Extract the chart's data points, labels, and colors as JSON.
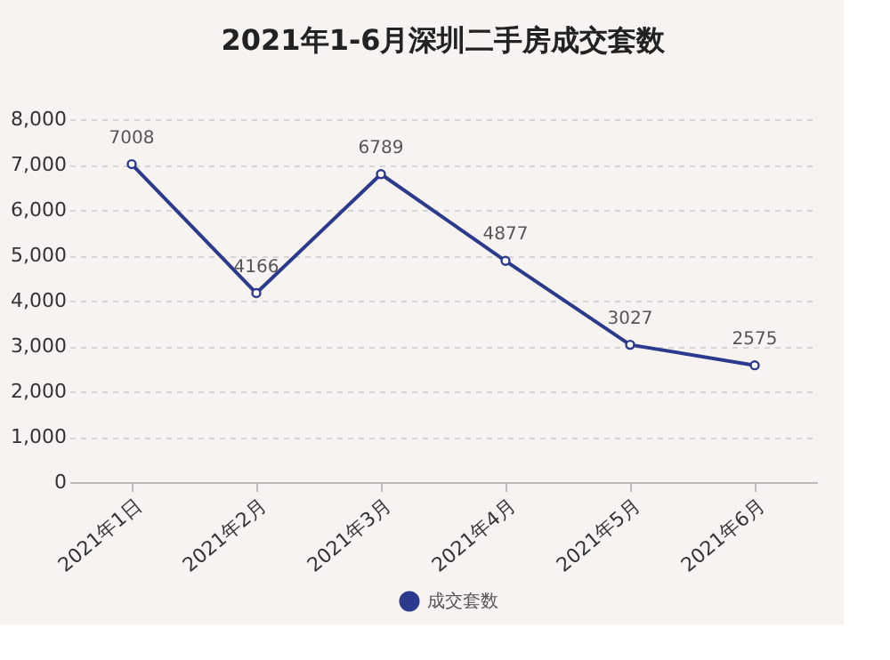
{
  "chart_data": {
    "type": "line",
    "title": "2021年1-6月深圳二手房成交套数",
    "categories": [
      "2021年1日",
      "2021年2月",
      "2021年3月",
      "2021年4月",
      "2021年5月",
      "2021年6月"
    ],
    "series": [
      {
        "name": "成交套数",
        "color": "#2b3a8c",
        "values": [
          7008,
          4166,
          6789,
          4877,
          3027,
          2575
        ]
      }
    ],
    "ylim": [
      0,
      8000
    ],
    "yticks": [
      0,
      {
        "value": 1000,
        "label": "1,000"
      },
      {
        "value": 2000,
        "label": "2,000"
      },
      {
        "value": 3000,
        "label": "3,000"
      },
      {
        "value": 4000,
        "label": "4,000"
      },
      {
        "value": 5000,
        "label": "5,000"
      },
      {
        "value": 6000,
        "label": "6,000"
      },
      {
        "value": 7000,
        "label": "7,000"
      },
      {
        "value": 8000,
        "label": "8,000"
      }
    ],
    "grid": "y",
    "legend": "bottom",
    "marker": "circle",
    "line_style": "solid",
    "data_labels": true
  }
}
